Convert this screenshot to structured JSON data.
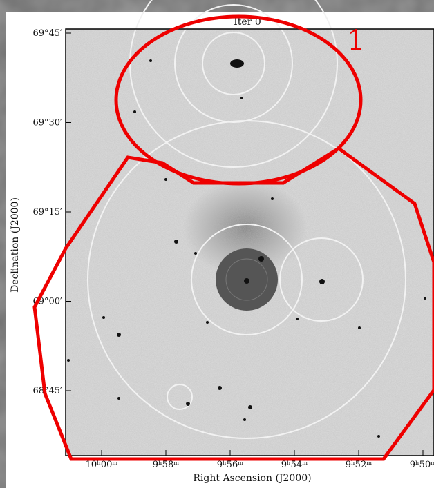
{
  "figure": {
    "title": "Iter 0",
    "x_axis_label": "Right Ascension (J2000)",
    "y_axis_label": "Declination (J2000)",
    "x_ticks": [
      "10ʰ00ᵐ",
      "9ʰ58ᵐ",
      "9ʰ56ᵐ",
      "9ʰ54ᵐ",
      "9ʰ52ᵐ",
      "9ʰ50ᵐ"
    ],
    "y_ticks": [
      "69°45′",
      "69°30′",
      "69°15′",
      "69°00′",
      "68°45′"
    ],
    "annotation": "1"
  }
}
